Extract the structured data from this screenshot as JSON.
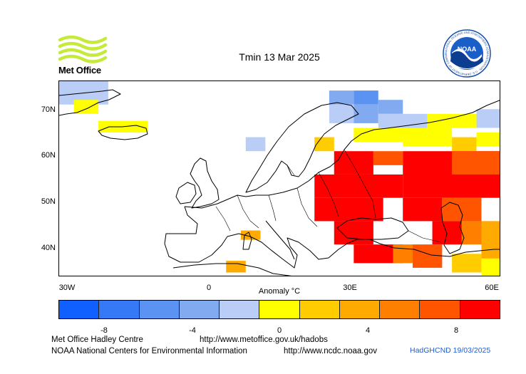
{
  "title": "Tmin 13 Mar 2025",
  "logos": {
    "metoffice_text": "Met Office",
    "noaa_text": "NOAA",
    "noaa_ring_text": "NATIONAL OCEANIC AND ATMOSPHERIC ADMINISTRATION · U.S. DEPARTMENT OF COMMERCE"
  },
  "map": {
    "region": "Europe",
    "lat_labels": [
      "70N",
      "60N",
      "50N",
      "40N"
    ],
    "lon_labels": [
      "30W",
      "0",
      "30E",
      "60E"
    ],
    "lat_range": [
      33,
      75
    ],
    "lon_range": [
      -30,
      60
    ],
    "grid_cell_deg": 5
  },
  "colorbar": {
    "title": "Anomaly °C",
    "colors": [
      "#1060ff",
      "#3579f6",
      "#5b93f2",
      "#82aaf0",
      "#b9cdf6",
      "#ffff00",
      "#ffcc00",
      "#ffaa00",
      "#ff8000",
      "#ff5500",
      "#ff0000"
    ],
    "tick_labels": [
      "-8",
      "-4",
      "0",
      "4",
      "8"
    ],
    "tick_values": [
      -8,
      -4,
      0,
      4,
      8
    ]
  },
  "credits": {
    "line1_left": "Met Office Hadley Centre",
    "line1_url": "http://www.metoffice.gov.uk/hadobs",
    "line2_left": "NOAA National Centers for Environmental Information",
    "line2_url": "http://www.ncdc.noaa.gov",
    "stamp": "HadGHCND 19/03/2025"
  }
}
